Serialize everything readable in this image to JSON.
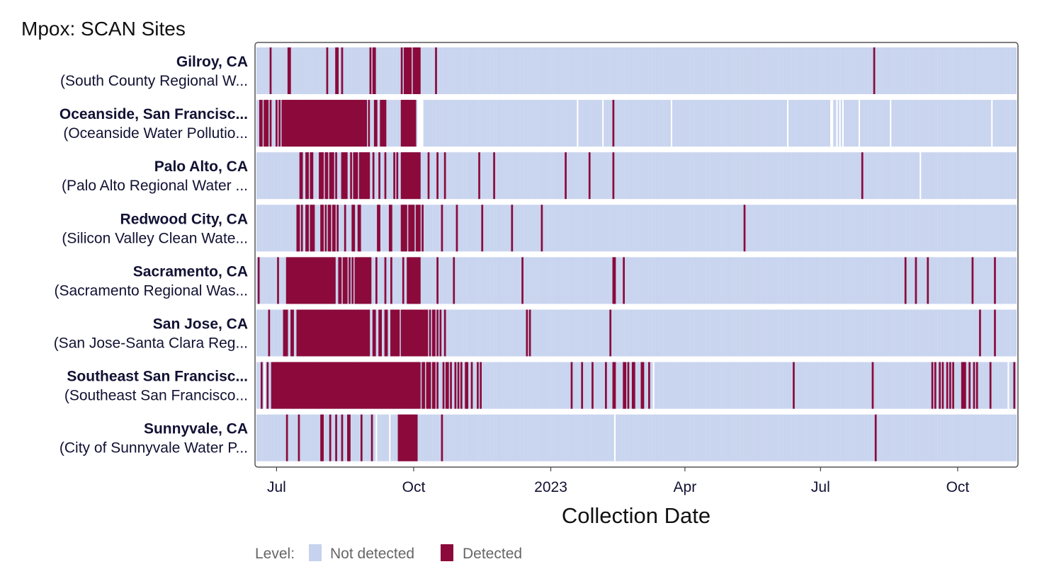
{
  "chart_data": {
    "type": "heatmap",
    "title": "Mpox: SCAN Sites",
    "xlabel": "Collection Date",
    "ylabel": "",
    "x_range": [
      "2022-06-18",
      "2023-11-09"
    ],
    "x_ticks": [
      {
        "date": "2022-07-01",
        "label": "Jul"
      },
      {
        "date": "2022-10-01",
        "label": "Oct"
      },
      {
        "date": "2023-01-01",
        "label": "2023"
      },
      {
        "date": "2023-04-01",
        "label": "Apr"
      },
      {
        "date": "2023-07-01",
        "label": "Jul"
      },
      {
        "date": "2023-10-01",
        "label": "Oct"
      }
    ],
    "legend": {
      "title": "Level:",
      "position": "bottom",
      "items": [
        {
          "label": "Not detected",
          "color": "#c6d2ee"
        },
        {
          "label": "Detected",
          "color": "#8b0a3b"
        }
      ]
    },
    "levels": [
      "Not detected",
      "Detected"
    ],
    "colors": {
      "not_detected": "#c6d2ee",
      "detected": "#8b0a3b",
      "gap": "#ffffff",
      "frame": "#555555"
    },
    "series": [
      {
        "name": "Gilroy, CA",
        "facility": "(South County Regional W...",
        "detected_dates": [
          "2022-06-27",
          "2022-07-09",
          "2022-07-10",
          "2022-08-04",
          "2022-08-10",
          "2022-08-11",
          "2022-08-14",
          "2022-09-02",
          "2022-09-04",
          "2022-09-05",
          "2022-09-23",
          "2022-09-25",
          "2022-09-26",
          "2022-09-27",
          "2022-09-28",
          "2022-09-29",
          "2022-10-01",
          "2022-10-02",
          "2022-10-03",
          "2022-10-04",
          "2022-10-05",
          "2022-10-16",
          "2023-08-06"
        ],
        "missing_dates": []
      },
      {
        "name": "Oceanside, San Francisc...",
        "facility": "(Oceanside Water Pollutio...",
        "detected_dates": [
          "2022-06-20",
          "2022-06-21",
          "2022-06-23",
          "2022-06-24",
          "2022-06-25",
          "2022-06-27",
          "2022-07-01",
          "2022-07-03",
          "2022-07-05",
          "2022-07-06",
          "2022-07-07",
          "2022-07-08",
          "2022-07-09",
          "2022-07-10",
          "2022-07-11",
          "2022-07-12",
          "2022-07-13",
          "2022-07-14",
          "2022-07-15",
          "2022-07-16",
          "2022-07-17",
          "2022-07-18",
          "2022-07-19",
          "2022-07-20",
          "2022-07-21",
          "2022-07-22",
          "2022-07-23",
          "2022-07-24",
          "2022-07-25",
          "2022-07-26",
          "2022-07-27",
          "2022-07-28",
          "2022-07-29",
          "2022-07-30",
          "2022-07-31",
          "2022-08-01",
          "2022-08-02",
          "2022-08-03",
          "2022-08-04",
          "2022-08-05",
          "2022-08-06",
          "2022-08-07",
          "2022-08-08",
          "2022-08-09",
          "2022-08-10",
          "2022-08-11",
          "2022-08-12",
          "2022-08-13",
          "2022-08-14",
          "2022-08-15",
          "2022-08-16",
          "2022-08-17",
          "2022-08-18",
          "2022-08-19",
          "2022-08-20",
          "2022-08-21",
          "2022-08-22",
          "2022-08-23",
          "2022-08-24",
          "2022-08-25",
          "2022-08-26",
          "2022-08-27",
          "2022-08-28",
          "2022-08-29",
          "2022-08-30",
          "2022-09-01",
          "2022-09-05",
          "2022-09-06",
          "2022-09-09",
          "2022-09-10",
          "2022-09-11",
          "2022-09-12",
          "2022-09-23",
          "2022-09-24",
          "2022-09-25",
          "2022-09-26",
          "2022-09-27",
          "2022-09-28",
          "2022-09-29",
          "2022-09-30",
          "2022-10-01",
          "2022-10-02",
          "2023-02-12"
        ],
        "missing_dates": [
          "2022-10-04",
          "2022-10-05",
          "2022-10-06",
          "2022-10-07",
          "2023-01-19",
          "2023-02-05",
          "2023-03-23",
          "2023-06-09",
          "2023-07-08",
          "2023-07-09",
          "2023-07-12",
          "2023-07-14",
          "2023-07-16",
          "2023-07-27",
          "2023-08-17",
          "2023-10-24"
        ]
      },
      {
        "name": "Palo Alto, CA",
        "facility": "(Palo Alto Regional Water ...",
        "detected_dates": [
          "2022-07-17",
          "2022-07-18",
          "2022-07-21",
          "2022-07-22",
          "2022-07-24",
          "2022-07-25",
          "2022-07-30",
          "2022-07-31",
          "2022-08-01",
          "2022-08-03",
          "2022-08-04",
          "2022-08-06",
          "2022-08-07",
          "2022-08-08",
          "2022-08-10",
          "2022-08-14",
          "2022-08-15",
          "2022-08-16",
          "2022-08-17",
          "2022-08-20",
          "2022-08-22",
          "2022-08-23",
          "2022-08-24",
          "2022-08-26",
          "2022-08-27",
          "2022-08-28",
          "2022-08-29",
          "2022-08-30",
          "2022-08-31",
          "2022-09-01",
          "2022-09-04",
          "2022-09-08",
          "2022-09-12",
          "2022-09-18",
          "2022-09-20",
          "2022-09-23",
          "2022-09-24",
          "2022-09-25",
          "2022-09-26",
          "2022-09-27",
          "2022-09-28",
          "2022-09-29",
          "2022-09-30",
          "2022-10-01",
          "2022-10-02",
          "2022-10-03",
          "2022-10-04",
          "2022-10-05",
          "2022-10-11",
          "2022-10-17",
          "2022-10-22",
          "2022-11-14",
          "2022-11-24",
          "2023-01-11",
          "2023-01-27",
          "2023-02-12",
          "2023-07-29"
        ],
        "missing_dates": [
          "2023-09-06"
        ]
      },
      {
        "name": "Redwood City, CA",
        "facility": "(Silicon Valley Clean Wate...",
        "detected_dates": [
          "2022-07-15",
          "2022-07-16",
          "2022-07-18",
          "2022-07-21",
          "2022-07-22",
          "2022-07-24",
          "2022-07-25",
          "2022-07-26",
          "2022-07-31",
          "2022-08-01",
          "2022-08-03",
          "2022-08-05",
          "2022-08-06",
          "2022-08-08",
          "2022-08-09",
          "2022-08-11",
          "2022-08-16",
          "2022-08-21",
          "2022-08-22",
          "2022-08-25",
          "2022-08-26",
          "2022-09-07",
          "2022-09-08",
          "2022-09-15",
          "2022-09-16",
          "2022-09-23",
          "2022-09-24",
          "2022-09-25",
          "2022-09-26",
          "2022-09-28",
          "2022-09-29",
          "2022-09-30",
          "2022-10-01",
          "2022-10-03",
          "2022-10-04",
          "2022-10-05",
          "2022-10-07",
          "2022-10-20",
          "2022-10-30",
          "2022-11-16",
          "2022-12-06",
          "2022-12-26",
          "2023-05-11"
        ],
        "missing_dates": []
      },
      {
        "name": "Sacramento, CA",
        "facility": "(Sacramento Regional Was...",
        "detected_dates": [
          "2022-06-19",
          "2022-07-02",
          "2022-07-08",
          "2022-07-09",
          "2022-07-10",
          "2022-07-11",
          "2022-07-12",
          "2022-07-13",
          "2022-07-14",
          "2022-07-15",
          "2022-07-16",
          "2022-07-17",
          "2022-07-18",
          "2022-07-19",
          "2022-07-20",
          "2022-07-21",
          "2022-07-22",
          "2022-07-23",
          "2022-07-24",
          "2022-07-25",
          "2022-07-26",
          "2022-07-27",
          "2022-07-28",
          "2022-07-29",
          "2022-07-30",
          "2022-07-31",
          "2022-08-01",
          "2022-08-02",
          "2022-08-03",
          "2022-08-04",
          "2022-08-05",
          "2022-08-06",
          "2022-08-07",
          "2022-08-08",
          "2022-08-09",
          "2022-08-12",
          "2022-08-13",
          "2022-08-15",
          "2022-08-16",
          "2022-08-17",
          "2022-08-19",
          "2022-08-21",
          "2022-08-23",
          "2022-08-24",
          "2022-08-25",
          "2022-08-26",
          "2022-08-27",
          "2022-08-28",
          "2022-08-29",
          "2022-08-30",
          "2022-08-31",
          "2022-09-01",
          "2022-09-02",
          "2022-09-06",
          "2022-09-12",
          "2022-09-16",
          "2022-09-24",
          "2022-09-27",
          "2022-09-28",
          "2022-09-29",
          "2022-09-30",
          "2022-10-01",
          "2022-10-02",
          "2022-10-03",
          "2022-10-04",
          "2022-10-05",
          "2022-10-17",
          "2022-10-28",
          "2022-12-13",
          "2023-02-12",
          "2023-02-13",
          "2023-02-19",
          "2023-08-27",
          "2023-09-03",
          "2023-09-11",
          "2023-10-11",
          "2023-10-26"
        ],
        "missing_dates": []
      },
      {
        "name": "San Jose, CA",
        "facility": "(San Jose-Santa Clara Reg...",
        "detected_dates": [
          "2022-06-26",
          "2022-07-06",
          "2022-07-07",
          "2022-07-08",
          "2022-07-11",
          "2022-07-12",
          "2022-07-15",
          "2022-07-16",
          "2022-07-17",
          "2022-07-18",
          "2022-07-19",
          "2022-07-20",
          "2022-07-21",
          "2022-07-22",
          "2022-07-23",
          "2022-07-24",
          "2022-07-25",
          "2022-07-26",
          "2022-07-27",
          "2022-07-28",
          "2022-07-29",
          "2022-07-30",
          "2022-07-31",
          "2022-08-01",
          "2022-08-02",
          "2022-08-03",
          "2022-08-04",
          "2022-08-05",
          "2022-08-06",
          "2022-08-07",
          "2022-08-08",
          "2022-08-09",
          "2022-08-10",
          "2022-08-11",
          "2022-08-12",
          "2022-08-13",
          "2022-08-14",
          "2022-08-15",
          "2022-08-16",
          "2022-08-17",
          "2022-08-18",
          "2022-08-19",
          "2022-08-20",
          "2022-08-21",
          "2022-08-22",
          "2022-08-23",
          "2022-08-24",
          "2022-08-25",
          "2022-08-26",
          "2022-08-27",
          "2022-08-28",
          "2022-08-29",
          "2022-08-30",
          "2022-08-31",
          "2022-09-01",
          "2022-09-04",
          "2022-09-05",
          "2022-09-08",
          "2022-09-09",
          "2022-09-12",
          "2022-09-13",
          "2022-09-16",
          "2022-09-17",
          "2022-09-18",
          "2022-09-19",
          "2022-09-20",
          "2022-09-21",
          "2022-09-23",
          "2022-09-24",
          "2022-09-25",
          "2022-09-26",
          "2022-09-27",
          "2022-09-28",
          "2022-09-29",
          "2022-09-30",
          "2022-10-01",
          "2022-10-02",
          "2022-10-03",
          "2022-10-04",
          "2022-10-05",
          "2022-10-06",
          "2022-10-07",
          "2022-10-08",
          "2022-10-09",
          "2022-10-10",
          "2022-10-12",
          "2022-10-14",
          "2022-10-15",
          "2022-10-17",
          "2022-10-19",
          "2022-10-22",
          "2022-12-16",
          "2022-12-18",
          "2023-02-10",
          "2023-10-16",
          "2023-10-26"
        ],
        "missing_dates": []
      },
      {
        "name": "Southeast San Francisc...",
        "facility": "(Southeast San Francisco...",
        "detected_dates": [
          "2022-06-21",
          "2022-06-25",
          "2022-06-28",
          "2022-06-29",
          "2022-06-30",
          "2022-07-01",
          "2022-07-02",
          "2022-07-03",
          "2022-07-04",
          "2022-07-05",
          "2022-07-06",
          "2022-07-07",
          "2022-07-08",
          "2022-07-09",
          "2022-07-10",
          "2022-07-11",
          "2022-07-12",
          "2022-07-13",
          "2022-07-14",
          "2022-07-15",
          "2022-07-16",
          "2022-07-17",
          "2022-07-18",
          "2022-07-19",
          "2022-07-20",
          "2022-07-21",
          "2022-07-22",
          "2022-07-23",
          "2022-07-24",
          "2022-07-25",
          "2022-07-26",
          "2022-07-27",
          "2022-07-28",
          "2022-07-29",
          "2022-07-30",
          "2022-07-31",
          "2022-08-01",
          "2022-08-02",
          "2022-08-03",
          "2022-08-04",
          "2022-08-05",
          "2022-08-06",
          "2022-08-07",
          "2022-08-08",
          "2022-08-09",
          "2022-08-10",
          "2022-08-11",
          "2022-08-12",
          "2022-08-13",
          "2022-08-14",
          "2022-08-15",
          "2022-08-16",
          "2022-08-17",
          "2022-08-18",
          "2022-08-19",
          "2022-08-20",
          "2022-08-21",
          "2022-08-22",
          "2022-08-23",
          "2022-08-24",
          "2022-08-25",
          "2022-08-26",
          "2022-08-27",
          "2022-08-28",
          "2022-08-29",
          "2022-08-30",
          "2022-08-31",
          "2022-09-01",
          "2022-09-02",
          "2022-09-03",
          "2022-09-04",
          "2022-09-05",
          "2022-09-06",
          "2022-09-07",
          "2022-09-08",
          "2022-09-09",
          "2022-09-10",
          "2022-09-11",
          "2022-09-12",
          "2022-09-13",
          "2022-09-14",
          "2022-09-15",
          "2022-09-16",
          "2022-09-17",
          "2022-09-18",
          "2022-09-19",
          "2022-09-20",
          "2022-09-21",
          "2022-09-22",
          "2022-09-23",
          "2022-09-24",
          "2022-09-25",
          "2022-09-26",
          "2022-09-27",
          "2022-09-28",
          "2022-09-29",
          "2022-09-30",
          "2022-10-01",
          "2022-10-02",
          "2022-10-03",
          "2022-10-04",
          "2022-10-05",
          "2022-10-07",
          "2022-10-08",
          "2022-10-10",
          "2022-10-11",
          "2022-10-12",
          "2022-10-14",
          "2022-10-15",
          "2022-10-17",
          "2022-10-21",
          "2022-10-23",
          "2022-10-24",
          "2022-10-26",
          "2022-10-29",
          "2022-10-31",
          "2022-11-02",
          "2022-11-05",
          "2022-11-06",
          "2022-11-09",
          "2022-11-13",
          "2022-11-15",
          "2023-01-15",
          "2023-01-22",
          "2023-01-29",
          "2023-02-07",
          "2023-02-12",
          "2023-02-13",
          "2023-02-19",
          "2023-02-20",
          "2023-02-22",
          "2023-02-25",
          "2023-02-26",
          "2023-03-03",
          "2023-03-04",
          "2023-03-08",
          "2023-06-13",
          "2023-08-05",
          "2023-09-14",
          "2023-09-16",
          "2023-09-19",
          "2023-09-21",
          "2023-09-24",
          "2023-09-26",
          "2023-09-28",
          "2023-10-04",
          "2023-10-05",
          "2023-10-06",
          "2023-10-09",
          "2023-10-12",
          "2023-10-14",
          "2023-10-23",
          "2023-11-08"
        ],
        "missing_dates": [
          "2022-06-23",
          "2023-03-11",
          "2023-11-04"
        ]
      },
      {
        "name": "Sunnyvale, CA",
        "facility": "(City of Sunnyvale Water P...",
        "detected_dates": [
          "2022-07-08",
          "2022-07-16",
          "2022-07-31",
          "2022-08-01",
          "2022-08-06",
          "2022-08-10",
          "2022-08-14",
          "2022-08-18",
          "2022-08-19",
          "2022-08-27",
          "2022-09-03",
          "2022-09-21",
          "2022-09-22",
          "2022-09-23",
          "2022-09-24",
          "2022-09-25",
          "2022-09-26",
          "2022-09-27",
          "2022-09-28",
          "2022-09-29",
          "2022-09-30",
          "2022-10-01",
          "2022-10-02",
          "2022-10-03",
          "2022-10-20",
          "2023-08-07"
        ],
        "missing_dates": [
          "2022-09-06",
          "2022-09-15",
          "2023-02-13"
        ]
      }
    ]
  }
}
